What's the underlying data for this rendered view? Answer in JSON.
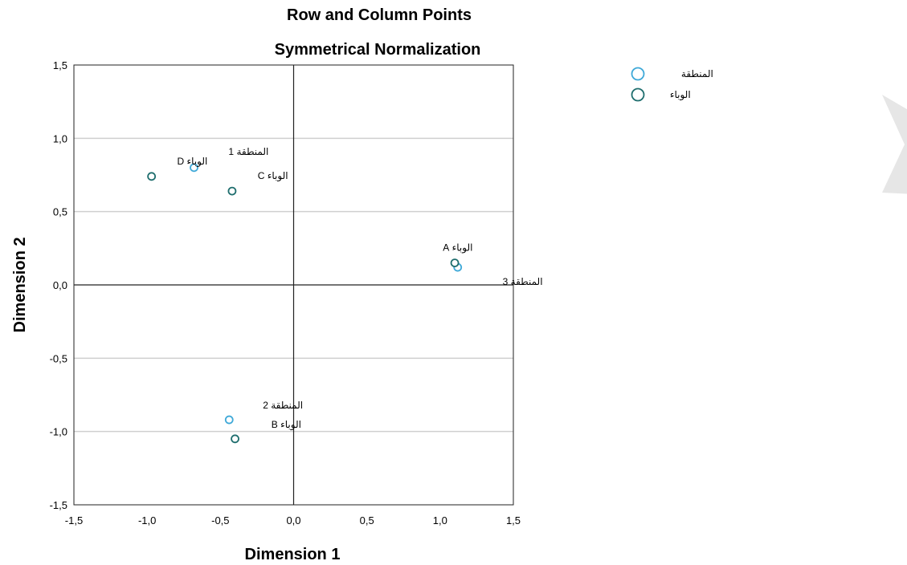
{
  "chart_data": {
    "type": "scatter",
    "title": "Row and Column Points",
    "subtitle": "Symmetrical Normalization",
    "xlabel": "Dimension 1",
    "ylabel": "Dimension 2",
    "xlim": [
      -1.5,
      1.5
    ],
    "ylim": [
      -1.5,
      1.5
    ],
    "xticks": [
      "-1,5",
      "-1,0",
      "-0,5",
      "0,0",
      "0,5",
      "1,0",
      "1,5"
    ],
    "yticks": [
      "1,5",
      "1,0",
      "0,5",
      "0,0",
      "-0,5",
      "-1,0",
      "-1,5"
    ],
    "grid": "horizontal",
    "legend_position": "top-right",
    "series": [
      {
        "name": "المنطقة",
        "color": "#3fa9d8",
        "points": [
          {
            "label": "المنطقة 1",
            "x": -0.68,
            "y": 0.8
          },
          {
            "label": "المنطقة 2",
            "x": -0.44,
            "y": -0.92
          },
          {
            "label": "المنطقة 3",
            "x": 1.12,
            "y": 0.12
          }
        ]
      },
      {
        "name": "الوباء",
        "color": "#1f6e6e",
        "points": [
          {
            "label": "الوباء A",
            "x": 1.1,
            "y": 0.15
          },
          {
            "label": "الوباء B",
            "x": -0.4,
            "y": -1.05
          },
          {
            "label": "الوباء C",
            "x": -0.42,
            "y": 0.64
          },
          {
            "label": "الوباء D",
            "x": -0.97,
            "y": 0.74
          }
        ]
      }
    ]
  }
}
